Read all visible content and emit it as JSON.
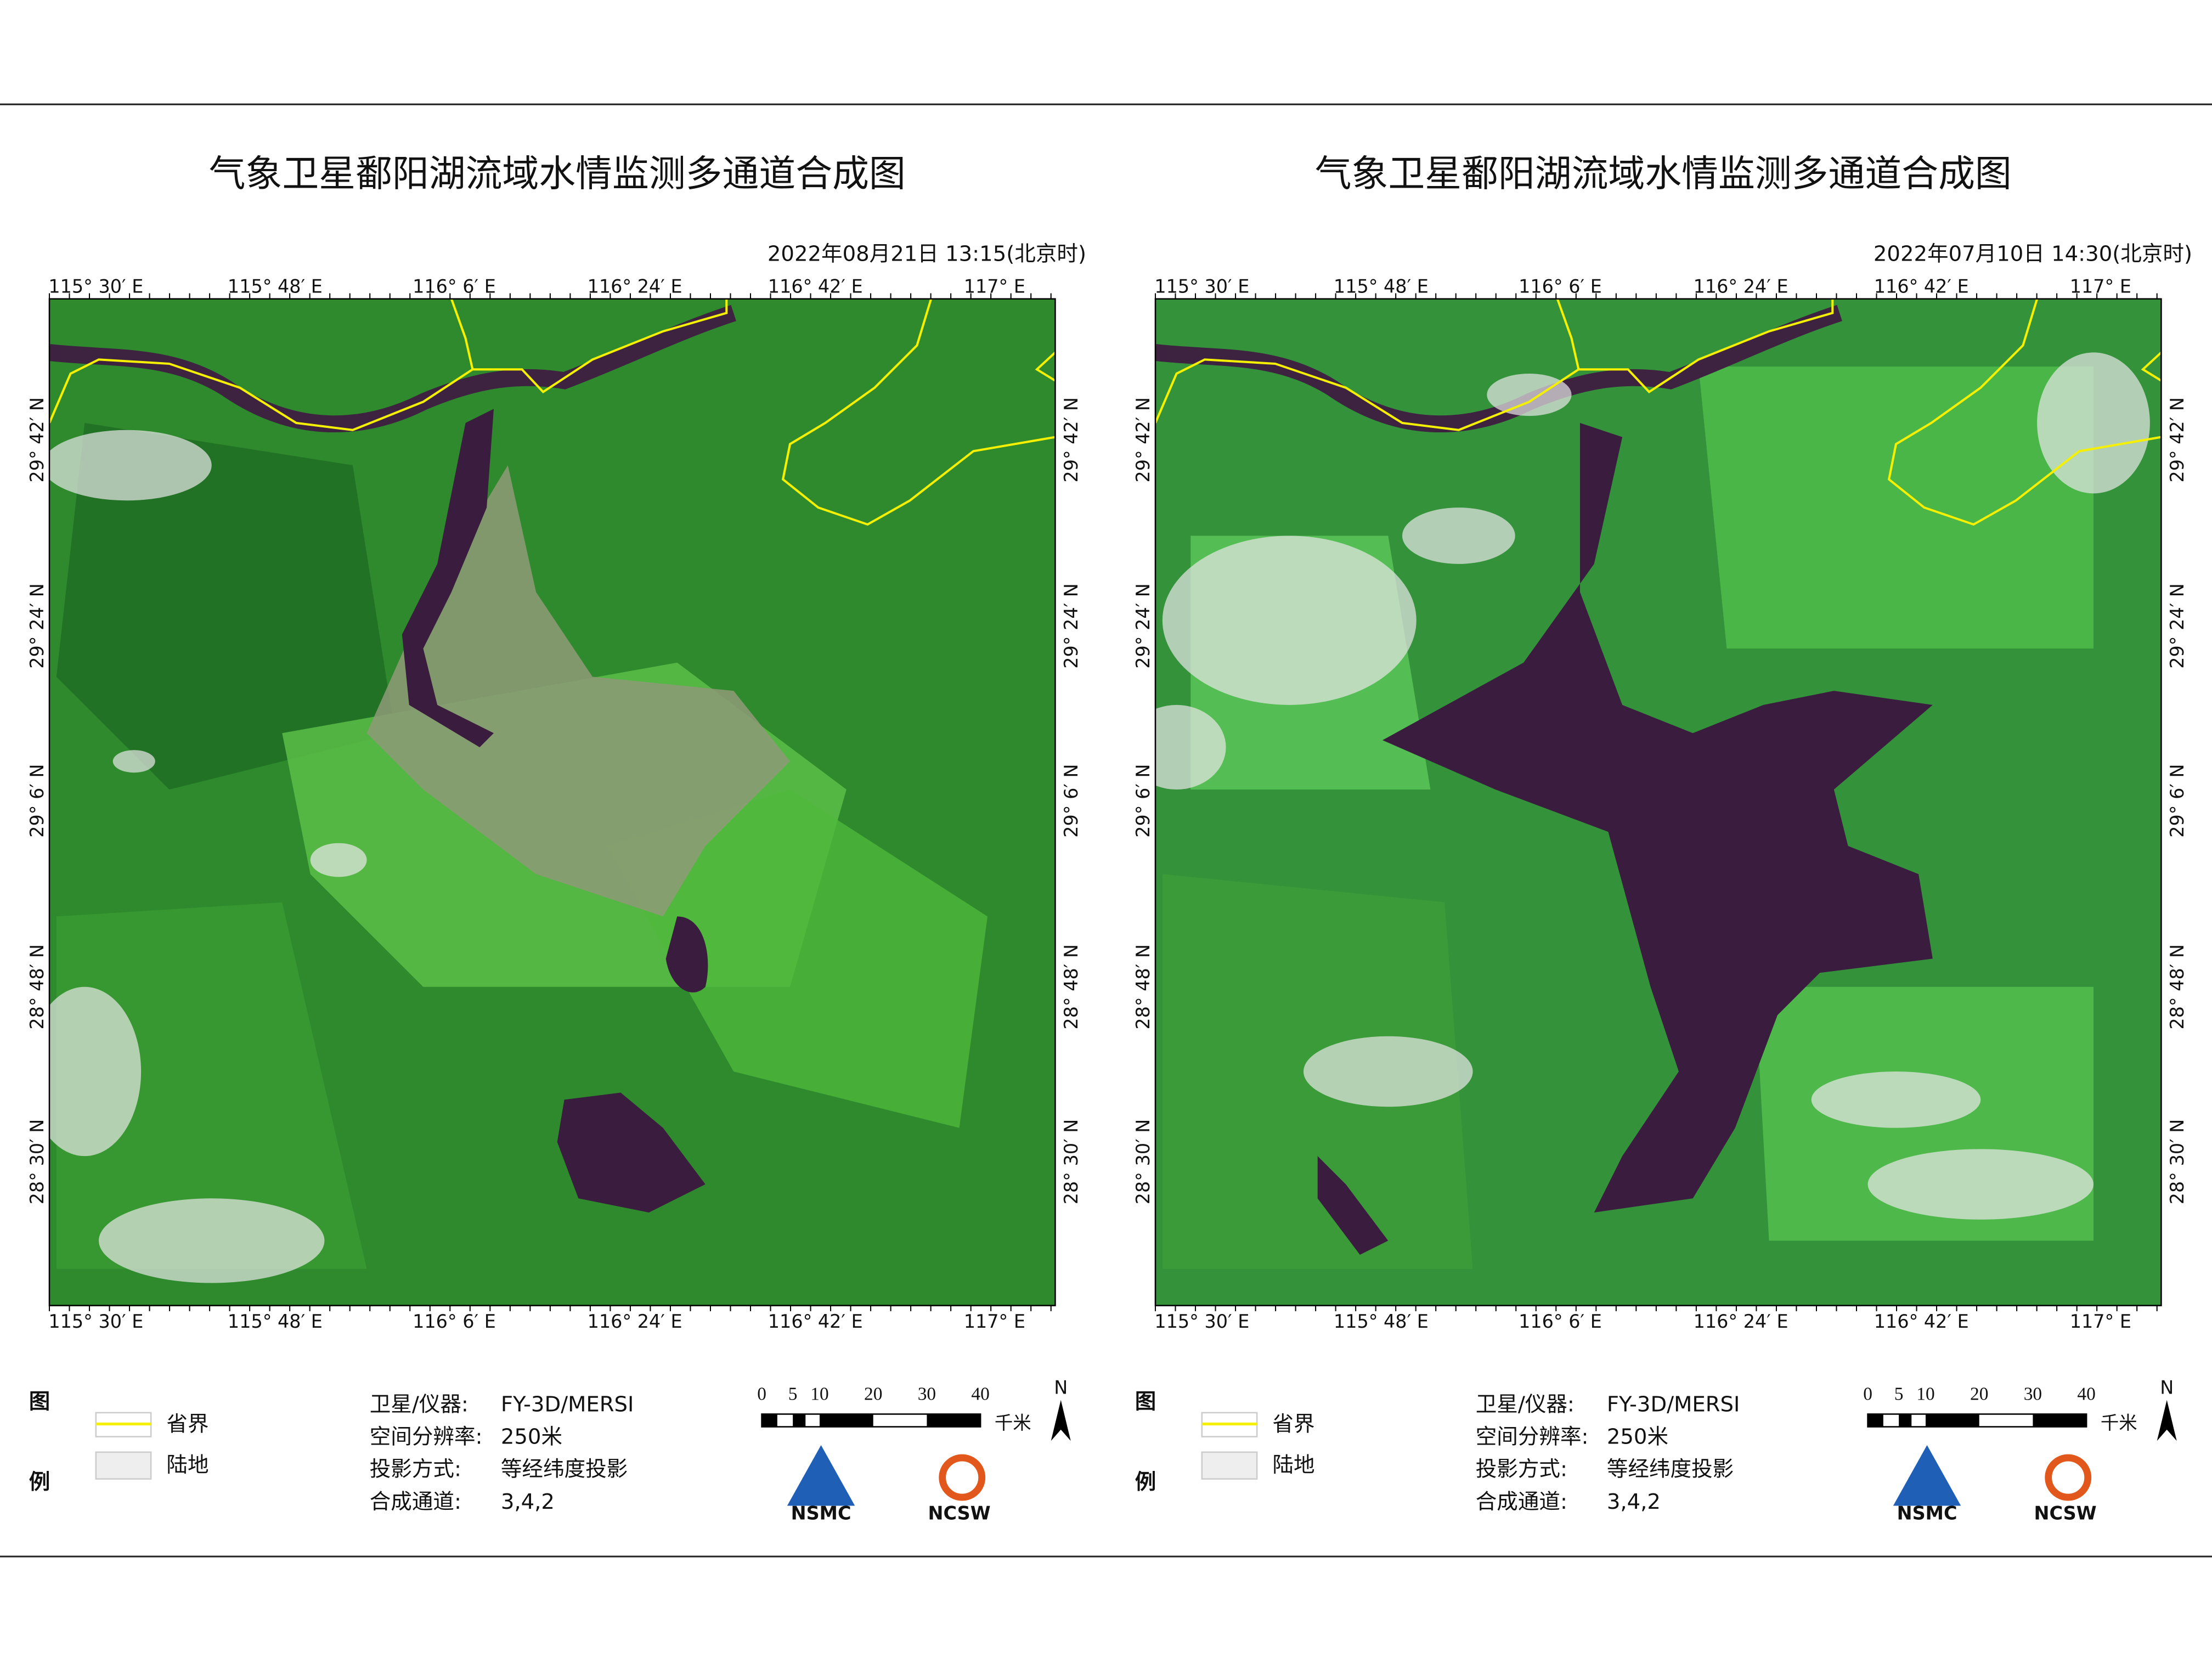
{
  "panels": [
    {
      "title": "气象卫星鄱阳湖流域水情监测多通道合成图",
      "datetime": "2022年08月21日 13:15(北京时)",
      "lon_labels": [
        "115° 30′ E",
        "115° 48′ E",
        "116° 6′ E",
        "116° 24′ E",
        "116° 42′ E",
        "117° E"
      ],
      "lat_labels": [
        "29° 42′ N",
        "29° 24′ N",
        "29° 6′ N",
        "28° 48′ N",
        "28° 30′ N"
      ],
      "legend": {
        "heading": [
          "图",
          "例"
        ],
        "items": [
          "省界",
          "陆地"
        ]
      },
      "info": [
        [
          "卫星/仪器:",
          "FY-3D/MERSI"
        ],
        [
          "空间分辨率:",
          "250米"
        ],
        [
          "投影方式:",
          "等经纬度投影"
        ],
        [
          "合成通道:",
          "3,4,2"
        ]
      ],
      "scale": {
        "ticks": [
          0,
          5,
          10,
          20,
          30,
          40
        ],
        "unit": "千米",
        "north": "N"
      },
      "logos": [
        "NSMC",
        "NCSW"
      ]
    },
    {
      "title": "气象卫星鄱阳湖流域水情监测多通道合成图",
      "datetime": "2022年07月10日 14:30(北京时)",
      "lon_labels": [
        "115° 30′ E",
        "115° 48′ E",
        "116° 6′ E",
        "116° 24′ E",
        "116° 42′ E",
        "117° E"
      ],
      "lat_labels": [
        "29° 42′ N",
        "29° 24′ N",
        "29° 6′ N",
        "28° 48′ N",
        "28° 30′ N"
      ],
      "legend": {
        "heading": [
          "图",
          "例"
        ],
        "items": [
          "省界",
          "陆地"
        ]
      },
      "info": [
        [
          "卫星/仪器:",
          "FY-3D/MERSI"
        ],
        [
          "空间分辨率:",
          "250米"
        ],
        [
          "投影方式:",
          "等经纬度投影"
        ],
        [
          "合成通道:",
          "3,4,2"
        ]
      ],
      "scale": {
        "ticks": [
          0,
          5,
          10,
          20,
          30,
          40
        ],
        "unit": "千米",
        "north": "N"
      },
      "logos": [
        "NSMC",
        "NCSW"
      ]
    }
  ]
}
